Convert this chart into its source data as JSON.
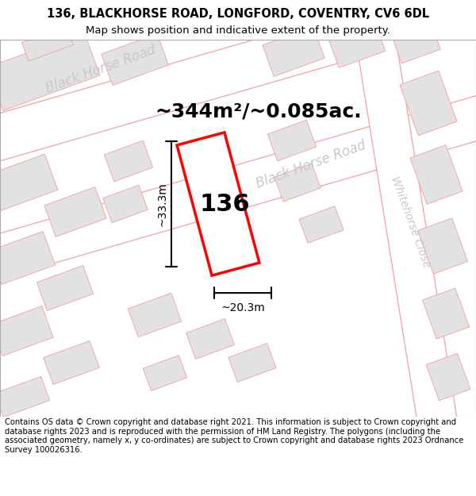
{
  "title": "136, BLACKHORSE ROAD, LONGFORD, COVENTRY, CV6 6DL",
  "subtitle": "Map shows position and indicative extent of the property.",
  "footer": "Contains OS data © Crown copyright and database right 2021. This information is subject to Crown copyright and database rights 2023 and is reproduced with the permission of HM Land Registry. The polygons (including the associated geometry, namely x, y co-ordinates) are subject to Crown copyright and database rights 2023 Ordnance Survey 100026316.",
  "area_label": "~344m²/~0.085ac.",
  "width_label": "~20.3m",
  "height_label": "~33.3m",
  "number_label": "136",
  "background_color": "#ffffff",
  "road_fill_color": "#ffffff",
  "building_fill_color": "#e2e2e2",
  "road_line_color": "#f5a8a8",
  "road_label_color": "#c8c8c8",
  "title_fontsize": 10.5,
  "subtitle_fontsize": 9.5,
  "footer_fontsize": 7.2,
  "area_fontsize": 18,
  "number_fontsize": 22,
  "dim_fontsize": 10,
  "road_label_fontsize": 12
}
